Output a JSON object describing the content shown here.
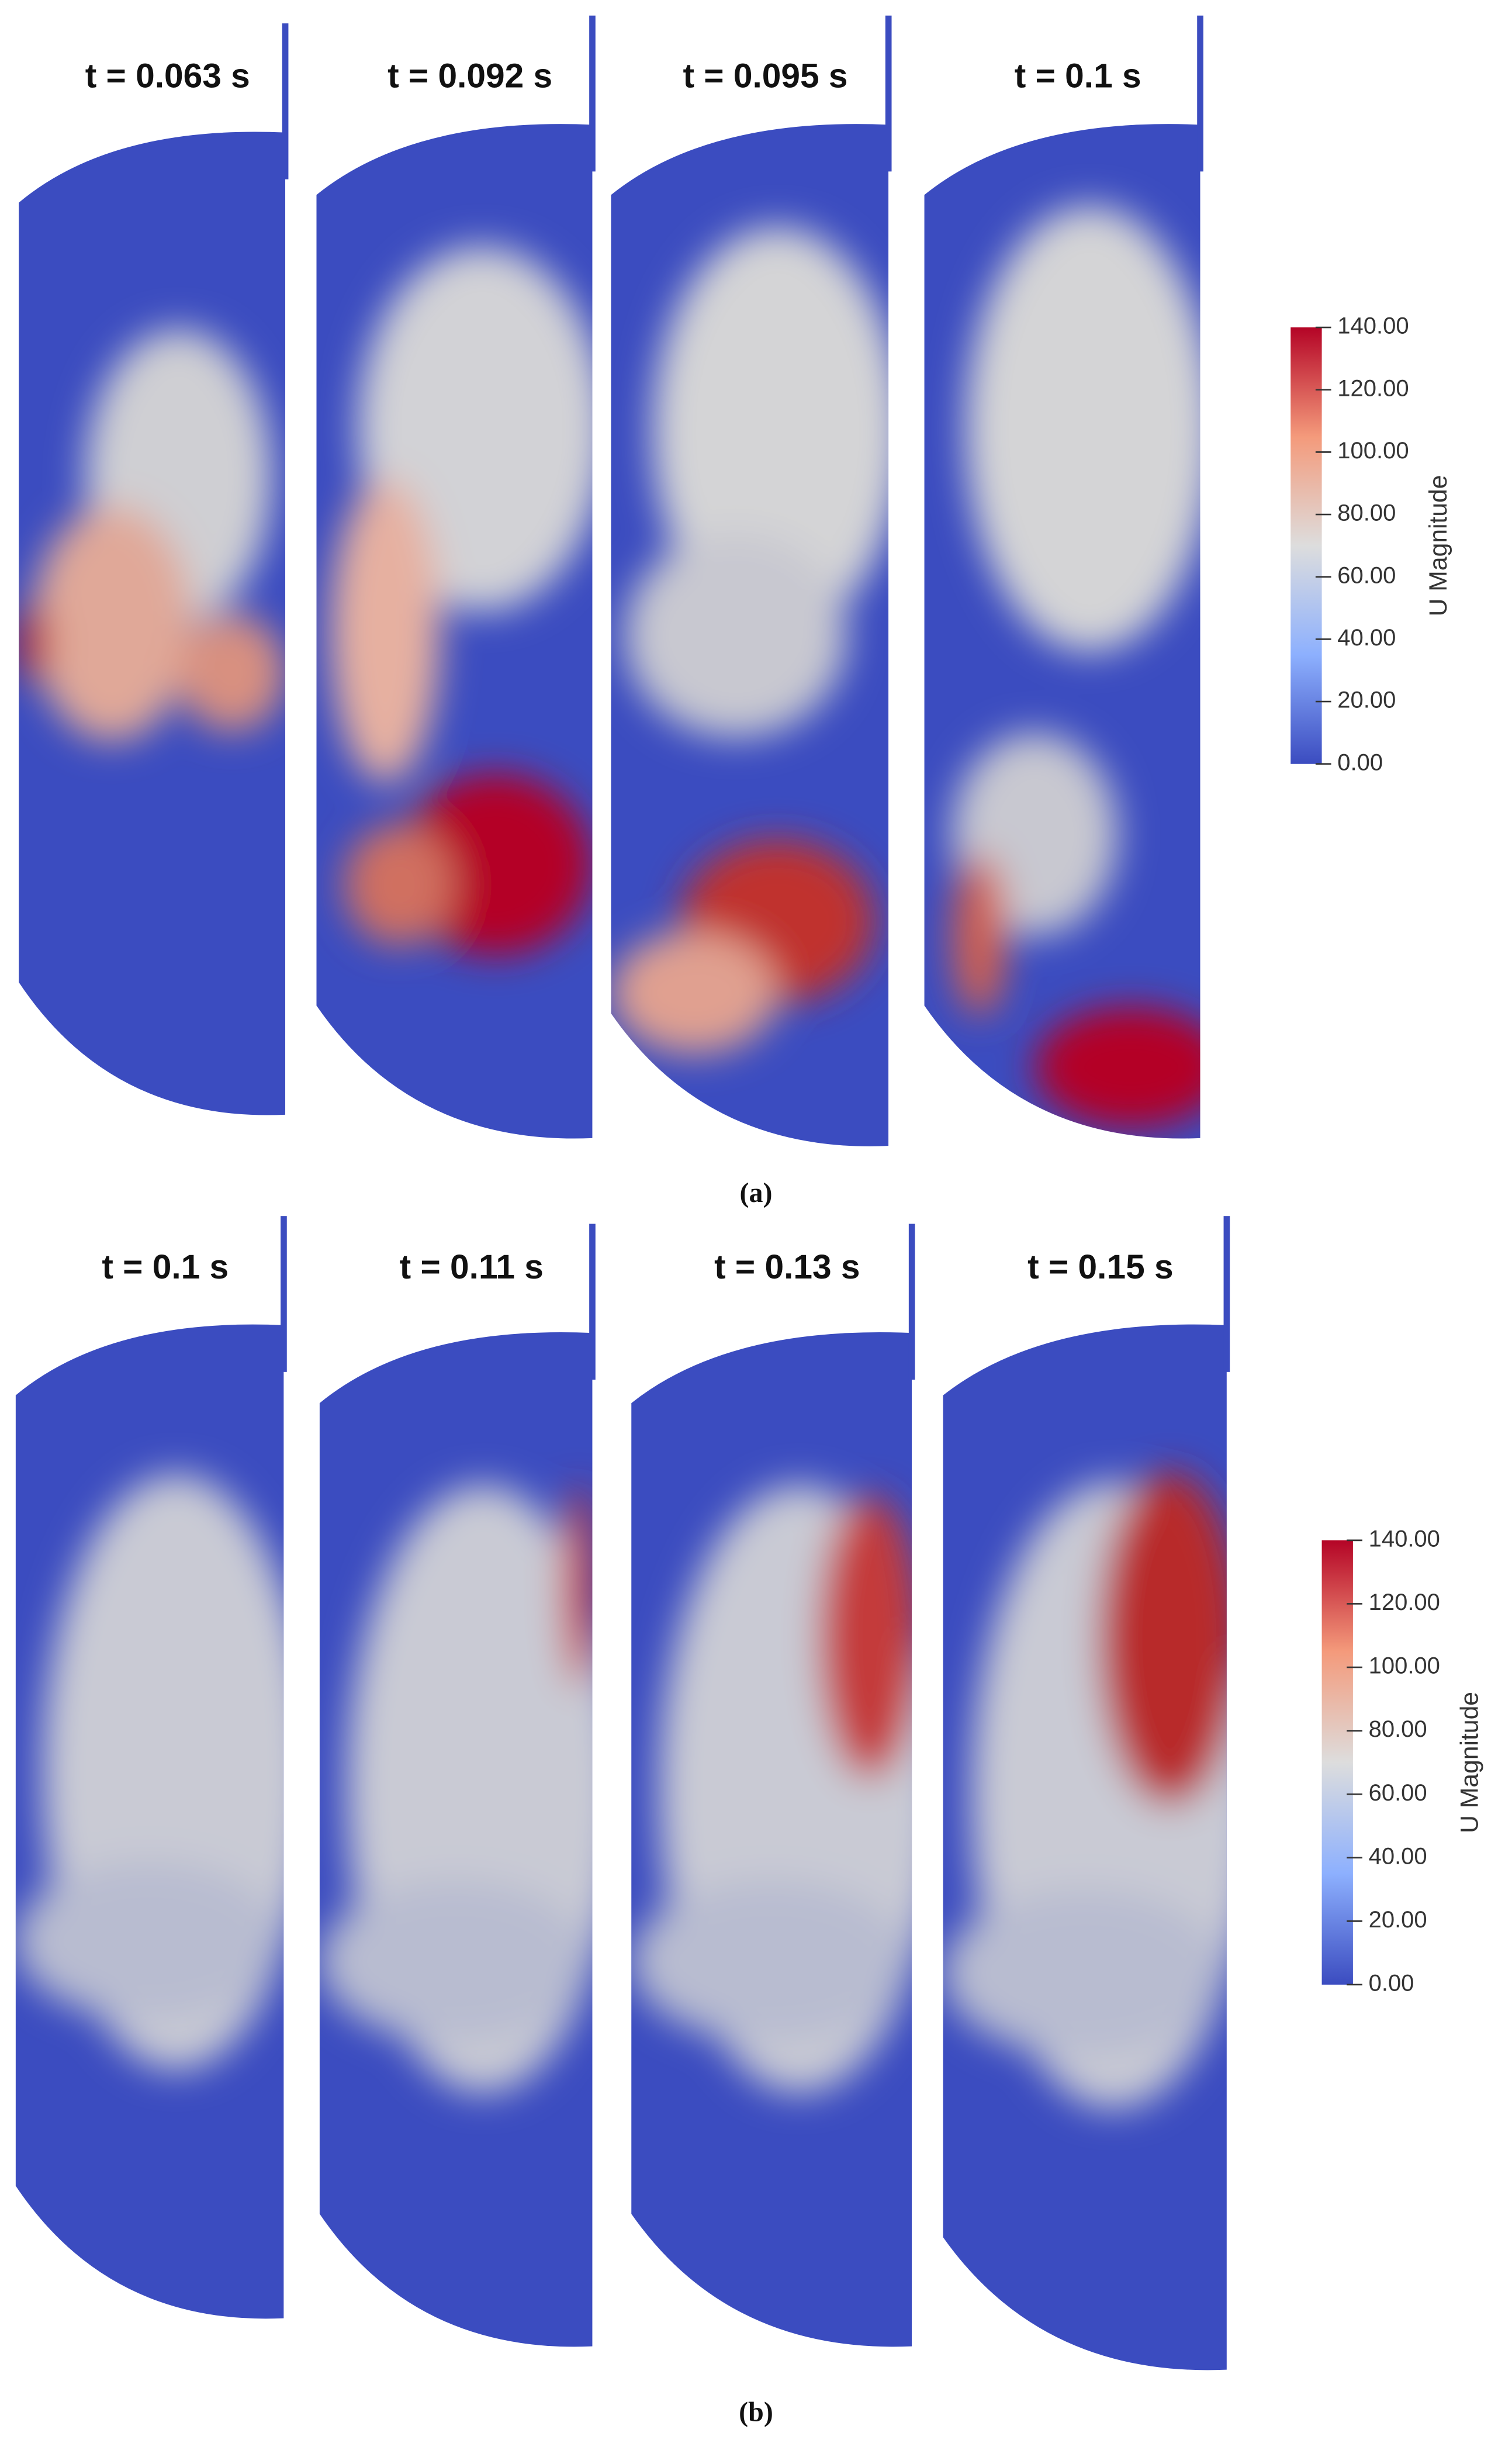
{
  "figure": {
    "panels": [
      {
        "caption": "(a)",
        "snapshots": [
          "t = 0.063 s",
          "t = 0.092 s",
          "t = 0.095 s",
          "t = 0.1 s"
        ],
        "colorbar": {
          "title": "U Magnitude",
          "range": [
            0,
            140
          ],
          "ticks": [
            {
              "value": 140,
              "label": "140.00"
            },
            {
              "value": 120,
              "label": "120.00"
            },
            {
              "value": 100,
              "label": "100.00"
            },
            {
              "value": 80,
              "label": "80.00"
            },
            {
              "value": 60,
              "label": "60.00"
            },
            {
              "value": 40,
              "label": "40.00"
            },
            {
              "value": 20,
              "label": "20.00"
            },
            {
              "value": 0,
              "label": "0.00"
            }
          ]
        }
      },
      {
        "caption": "(b)",
        "snapshots": [
          "t = 0.1 s",
          "t = 0.11 s",
          "t = 0.13 s",
          "t = 0.15 s"
        ],
        "colorbar": {
          "title": "U Magnitude",
          "range": [
            0,
            140
          ],
          "ticks": [
            {
              "value": 140,
              "label": "140.00"
            },
            {
              "value": 120,
              "label": "120.00"
            },
            {
              "value": 100,
              "label": "100.00"
            },
            {
              "value": 80,
              "label": "80.00"
            },
            {
              "value": 60,
              "label": "60.00"
            },
            {
              "value": 40,
              "label": "40.00"
            },
            {
              "value": 20,
              "label": "20.00"
            },
            {
              "value": 0,
              "label": "0.00"
            }
          ]
        }
      }
    ]
  }
}
